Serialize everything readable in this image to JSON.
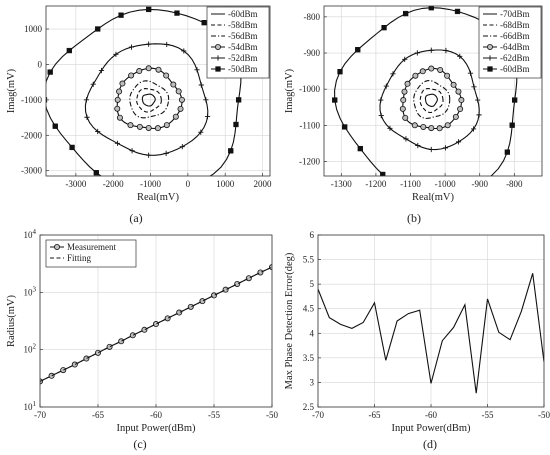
{
  "chart_data": [
    {
      "id": "a",
      "subplot_label": "(a)",
      "type": "line",
      "xlabel": "Real(mV)",
      "ylabel": "Imag(mV)",
      "xlim": [
        -3800,
        2200
      ],
      "ylim": [
        -3150,
        1650
      ],
      "xticks": [
        -3000,
        -2000,
        -1000,
        0,
        1000,
        2000
      ],
      "yticks": [
        -3000,
        -2000,
        -1000,
        0,
        1000
      ],
      "grid": true,
      "legend": "top-right",
      "center": [
        -1050,
        -1000
      ],
      "series": [
        {
          "name": "-60dBm",
          "radius": 170,
          "style": "solid",
          "marker": "none"
        },
        {
          "name": "-58dBm",
          "radius": 330,
          "style": "dashed",
          "marker": "none"
        },
        {
          "name": "-56dBm",
          "radius": 520,
          "style": "dashdot",
          "marker": "none"
        },
        {
          "name": "-54dBm",
          "radius": 860,
          "style": "solid",
          "marker": "circle"
        },
        {
          "name": "-52dBm",
          "radius": 1600,
          "style": "solid",
          "marker": "plus"
        },
        {
          "name": "-50dBm",
          "radius": 2600,
          "style": "solid",
          "marker": "square"
        }
      ]
    },
    {
      "id": "b",
      "subplot_label": "(b)",
      "type": "line",
      "xlabel": "Real(mV)",
      "ylabel": "Imag(mV)",
      "xlim": [
        -1350,
        -720
      ],
      "ylim": [
        -1240,
        -770
      ],
      "xticks": [
        -1300,
        -1200,
        -1100,
        -1000,
        -900,
        -800
      ],
      "yticks": [
        -1200,
        -1100,
        -1000,
        -900,
        -800
      ],
      "grid": true,
      "legend": "top-right",
      "center": [
        -1040,
        -1030
      ],
      "series": [
        {
          "name": "-70dBm",
          "radius": 17,
          "style": "solid",
          "marker": "none"
        },
        {
          "name": "-68dBm",
          "radius": 33,
          "style": "dashed",
          "marker": "none"
        },
        {
          "name": "-66dBm",
          "radius": 52,
          "style": "dashdot",
          "marker": "none"
        },
        {
          "name": "-64dBm",
          "radius": 84,
          "style": "solid",
          "marker": "circle"
        },
        {
          "name": "-62dBm",
          "radius": 140,
          "style": "solid",
          "marker": "plus"
        },
        {
          "name": "-60dBm",
          "radius": 260,
          "style": "solid",
          "marker": "square"
        }
      ]
    },
    {
      "id": "c",
      "subplot_label": "(c)",
      "type": "line",
      "xlabel": "Input Power(dBm)",
      "ylabel": "Radius(mV)",
      "xlim": [
        -70,
        -50
      ],
      "ylim": [
        10,
        10000
      ],
      "yscale": "log",
      "xticks": [
        -70,
        -65,
        -60,
        -55,
        -50
      ],
      "yticks": [
        10,
        100,
        1000,
        10000
      ],
      "grid": true,
      "legend": "top-left",
      "x": [
        -70,
        -69,
        -68,
        -67,
        -66,
        -65,
        -64,
        -63,
        -62,
        -61,
        -60,
        -59,
        -58,
        -57,
        -56,
        -55,
        -54,
        -53,
        -52,
        -51,
        -50
      ],
      "series": [
        {
          "name": "Measurement",
          "style": "solid",
          "marker": "circle",
          "values": [
            28,
            35,
            44,
            55,
            70,
            88,
            112,
            140,
            178,
            222,
            280,
            352,
            444,
            558,
            702,
            884,
            1113,
            1400,
            1762,
            2218,
            2750
          ]
        },
        {
          "name": "Fitting",
          "style": "dashed",
          "marker": "none",
          "values": [
            28,
            35,
            44,
            55,
            70,
            88,
            112,
            140,
            178,
            222,
            280,
            352,
            444,
            558,
            702,
            884,
            1113,
            1400,
            1762,
            2218,
            2750
          ]
        }
      ]
    },
    {
      "id": "d",
      "subplot_label": "(d)",
      "type": "line",
      "xlabel": "Input Power(dBm)",
      "ylabel": "Max Phase Detection Error(deg)",
      "xlim": [
        -70,
        -50
      ],
      "ylim": [
        2.5,
        6
      ],
      "xticks": [
        -70,
        -65,
        -60,
        -55,
        -50
      ],
      "yticks": [
        2.5,
        3,
        3.5,
        4,
        4.5,
        5,
        5.5,
        6
      ],
      "grid": true,
      "x": [
        -70,
        -69,
        -68,
        -67,
        -66,
        -65,
        -64,
        -63,
        -62,
        -61,
        -60,
        -59,
        -58,
        -57,
        -56,
        -55,
        -54,
        -53,
        -52,
        -51,
        -50
      ],
      "series": [
        {
          "name": "",
          "style": "solid",
          "marker": "none",
          "values": [
            4.9,
            4.32,
            4.18,
            4.1,
            4.22,
            4.62,
            3.45,
            4.25,
            4.4,
            4.47,
            2.98,
            3.85,
            4.12,
            4.58,
            2.78,
            4.7,
            4.02,
            3.87,
            4.45,
            5.22,
            3.42
          ]
        }
      ]
    }
  ]
}
